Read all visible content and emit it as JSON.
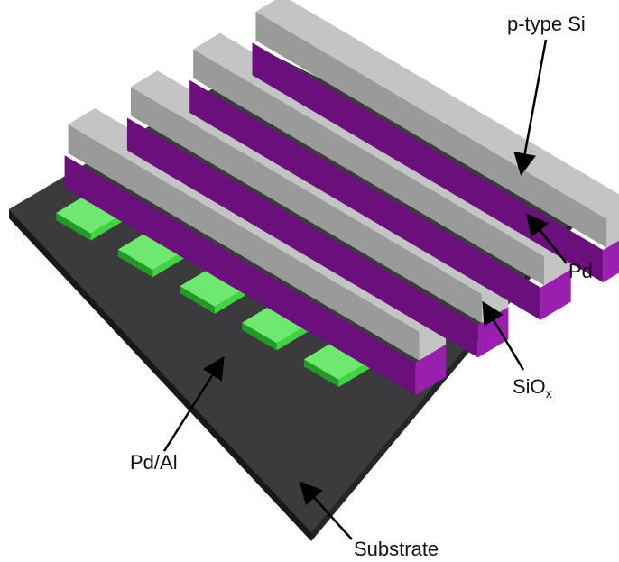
{
  "labels": {
    "p_type_si": "p-type Si",
    "pd": "Pd",
    "siox_main": "SiO",
    "siox_sub": "x",
    "pd_al": "Pd/Al",
    "substrate": "Substrate"
  },
  "colors": {
    "substrate_top": "#3b3b3d",
    "substrate_side": "#1e1e20",
    "silicon_green": "#3fd442",
    "silicon_green_light": "#6fe86f",
    "silicon_green_dark": "#239a27",
    "oxide_purple": "#9a1fae",
    "oxide_purple_dark": "#6b0f7c",
    "pd_gray_top": "#c4c4c4",
    "pd_gray_side": "#9a9a9a",
    "label_text": "#111111",
    "arrow": "#000000"
  }
}
